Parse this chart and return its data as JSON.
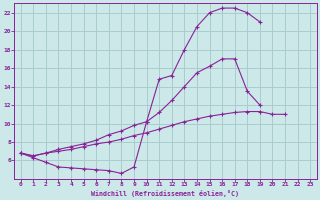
{
  "background_color": "#cce8e8",
  "grid_color": "#a8cccc",
  "line_color": "#882299",
  "marker_color": "#882299",
  "xlabel": "Windchill (Refroidissement éolien,°C)",
  "xlim": [
    -0.5,
    23.5
  ],
  "ylim": [
    4,
    23
  ],
  "xticks": [
    0,
    1,
    2,
    3,
    4,
    5,
    6,
    7,
    8,
    9,
    10,
    11,
    12,
    13,
    14,
    15,
    16,
    17,
    18,
    19,
    20,
    21,
    22,
    23
  ],
  "yticks": [
    6,
    8,
    10,
    12,
    14,
    16,
    18,
    20,
    22
  ],
  "series": [
    {
      "x": [
        0,
        1,
        2,
        3,
        4,
        5,
        6,
        7,
        8,
        9,
        10,
        11,
        12,
        13,
        14,
        15,
        16,
        17,
        18,
        19
      ],
      "y": [
        6.8,
        6.3,
        5.8,
        5.3,
        5.2,
        5.1,
        5.0,
        4.9,
        4.6,
        5.3,
        10.2,
        14.8,
        15.2,
        18.0,
        20.5,
        22.0,
        22.5,
        22.5,
        22.0,
        21.0
      ]
    },
    {
      "x": [
        0,
        1,
        2,
        3,
        4,
        5,
        6,
        7,
        8,
        9,
        10,
        11,
        12,
        13,
        14,
        15,
        16,
        17,
        18,
        19,
        20,
        21,
        22,
        23
      ],
      "y": [
        6.8,
        6.5,
        6.8,
        7.2,
        7.5,
        7.8,
        8.2,
        8.8,
        9.2,
        9.8,
        10.2,
        11.2,
        12.5,
        14.0,
        15.5,
        16.2,
        17.0,
        17.0,
        13.5,
        12.0,
        null,
        null,
        null,
        null
      ]
    },
    {
      "x": [
        0,
        1,
        2,
        3,
        4,
        5,
        6,
        7,
        8,
        9,
        10,
        11,
        12,
        13,
        14,
        15,
        16,
        17,
        18,
        19,
        20,
        21,
        22,
        23
      ],
      "y": [
        6.8,
        6.5,
        6.8,
        7.0,
        7.2,
        7.5,
        7.8,
        8.0,
        8.3,
        8.7,
        9.0,
        9.4,
        9.8,
        10.2,
        10.5,
        10.8,
        11.0,
        11.2,
        11.3,
        11.3,
        11.0,
        11.0,
        null,
        null
      ]
    }
  ]
}
